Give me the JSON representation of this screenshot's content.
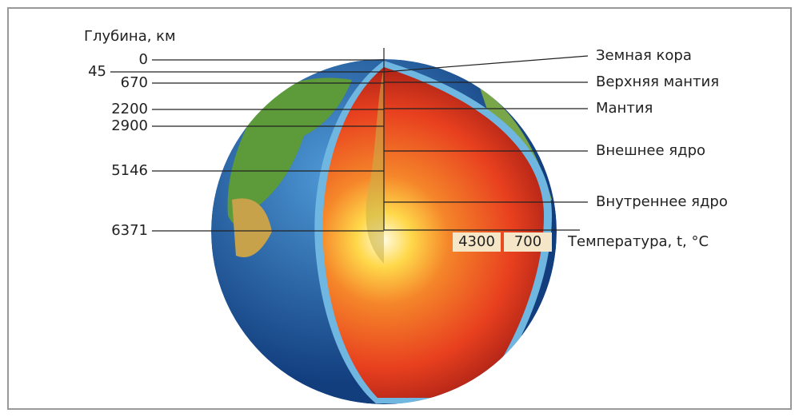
{
  "depth_axis": {
    "title": "Глубина, км",
    "labels": [
      "0",
      "45",
      "670",
      "2200",
      "2900",
      "5146",
      "6371"
    ]
  },
  "layers": [
    "Земная кора",
    "Верхняя мантия",
    "Мантия",
    "Внешнее ядро",
    "Внутреннее ядро"
  ],
  "temperature": {
    "title": "Температура, t, °C",
    "labels": [
      "4300",
      "700"
    ]
  }
}
